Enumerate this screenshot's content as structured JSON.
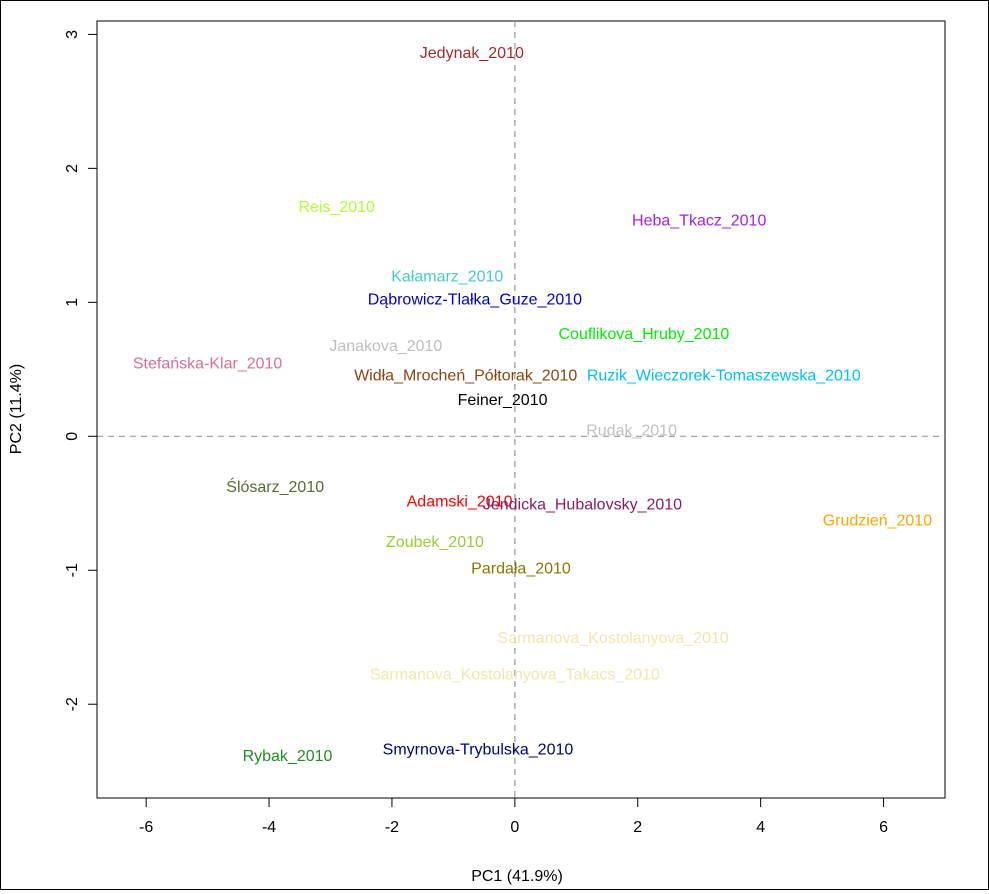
{
  "chart_data": {
    "type": "scatter",
    "title": "",
    "xlabel": "PC1 (41.9%)",
    "ylabel": "PC2 (11.4%)",
    "xlim": [
      -6.8,
      7.0
    ],
    "ylim": [
      -2.7,
      3.1
    ],
    "xticks": [
      -6,
      -4,
      -2,
      0,
      2,
      4,
      6
    ],
    "yticks": [
      -2,
      -1,
      0,
      1,
      2,
      3
    ],
    "reference_lines": {
      "x": 0,
      "y": 0,
      "style": "dashed"
    },
    "grid": false,
    "legend": "none",
    "points": [
      {
        "label": "Jedynak_2010",
        "x": -0.7,
        "y": 2.87,
        "color": "#a52a2a"
      },
      {
        "label": "Reis_2010",
        "x": -2.9,
        "y": 1.72,
        "color": "#adff2f"
      },
      {
        "label": "Heba_Tkacz_2010",
        "x": 3.0,
        "y": 1.62,
        "color": "#a020f0"
      },
      {
        "label": "Kałamarz_2010",
        "x": -1.1,
        "y": 1.2,
        "color": "#48c9c9"
      },
      {
        "label": "Dąbrowicz-Tlałka_Guze_2010",
        "x": -0.65,
        "y": 1.03,
        "color": "#0000cd"
      },
      {
        "label": "Couflikova_Hruby_2010",
        "x": 2.1,
        "y": 0.77,
        "color": "#00ee00"
      },
      {
        "label": "Janakova_2010",
        "x": -2.1,
        "y": 0.68,
        "color": "#bebebe"
      },
      {
        "label": "Stefańska-Klar_2010",
        "x": -5.0,
        "y": 0.55,
        "color": "#db7093"
      },
      {
        "label": "Widła_Mrocheń_Półtorak_2010",
        "x": -0.8,
        "y": 0.46,
        "color": "#8b4513"
      },
      {
        "label": "Ruzik_Wieczorek-Tomaszewska_2010",
        "x": 3.4,
        "y": 0.46,
        "color": "#00bfff"
      },
      {
        "label": "Feiner_2010",
        "x": -0.2,
        "y": 0.28,
        "color": "#000000"
      },
      {
        "label": "Rudak_2010",
        "x": 1.9,
        "y": 0.05,
        "color": "#c0c0c0"
      },
      {
        "label": "Ślósarz_2010",
        "x": -3.9,
        "y": -0.37,
        "color": "#556b2f"
      },
      {
        "label": "Adamski_2010",
        "x": -0.9,
        "y": -0.48,
        "color": "#ff0000"
      },
      {
        "label": "Jendicka_Hubalovsky_2010",
        "x": 1.1,
        "y": -0.5,
        "color": "#8b1c62"
      },
      {
        "label": "Grudzień_2010",
        "x": 5.9,
        "y": -0.62,
        "color": "#ffa500"
      },
      {
        "label": "Zoubek_2010",
        "x": -1.3,
        "y": -0.78,
        "color": "#9acd32"
      },
      {
        "label": "Pardała_2010",
        "x": 0.1,
        "y": -0.98,
        "color": "#8b7500"
      },
      {
        "label": "Sarmanova_Kostolanyova_2010",
        "x": 1.6,
        "y": -1.5,
        "color": "#eee8aa"
      },
      {
        "label": "Sarmanova_Kostolanyova_Takacs_2010",
        "x": 0.0,
        "y": -1.77,
        "color": "#eee8aa"
      },
      {
        "label": "Rybak_2010",
        "x": -3.7,
        "y": -2.38,
        "color": "#228b22"
      },
      {
        "label": "Smyrnova-Trybulska_2010",
        "x": -0.6,
        "y": -2.33,
        "color": "#000080"
      }
    ]
  }
}
